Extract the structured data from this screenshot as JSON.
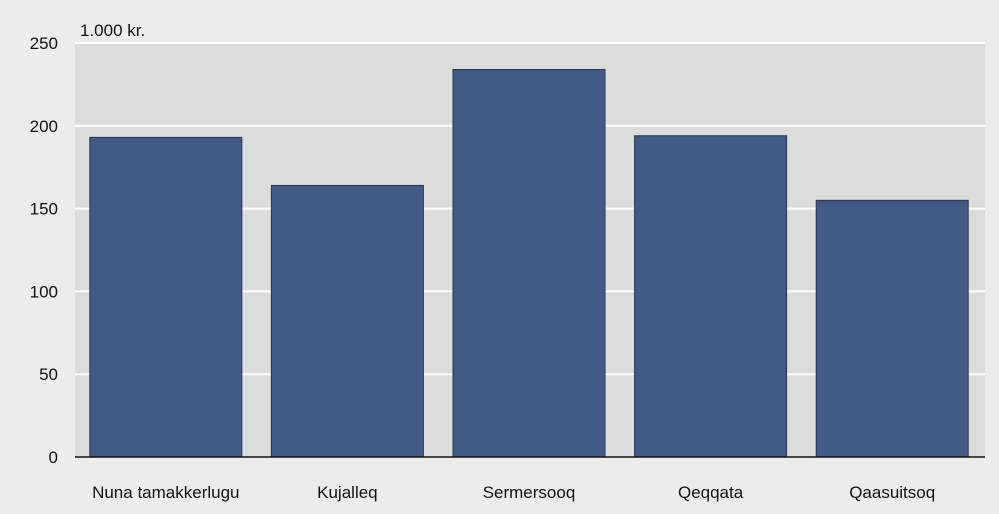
{
  "chart_data": {
    "type": "bar",
    "title": "",
    "unit_label": "1.000 kr.",
    "xlabel": "",
    "ylabel": "",
    "categories": [
      "Nuna tamakkerlugu",
      "Kujalleq",
      "Sermersooq",
      "Qeqqata",
      "Qaasuitsoq"
    ],
    "values": [
      193,
      164,
      234,
      194,
      155
    ],
    "ylim": [
      0,
      250
    ],
    "yticks": [
      0,
      50,
      100,
      150,
      200,
      250
    ],
    "grid": true,
    "legend": "none",
    "colors": {
      "bar": "#435a87",
      "bar_edge": "#2a3550",
      "plot_background": "#dcdcdc",
      "page_background": "#ececec",
      "gridline": "#ffffff",
      "axis": "#111111"
    }
  }
}
